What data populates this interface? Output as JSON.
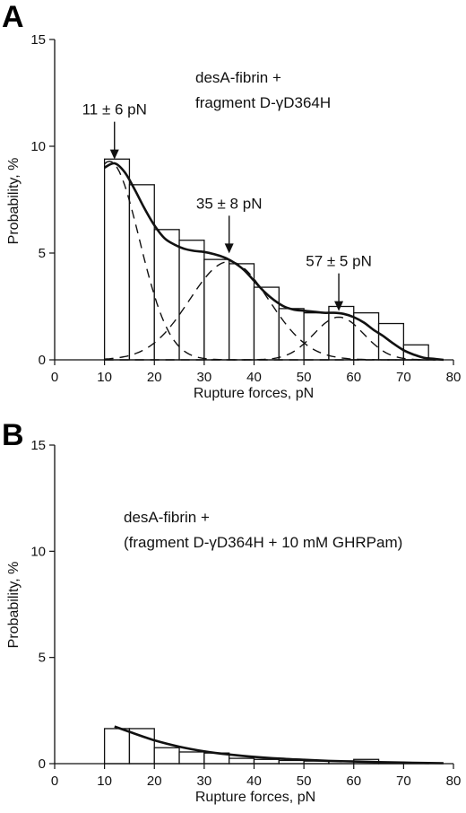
{
  "chart_data": [
    {
      "panel": "A",
      "type": "bar",
      "xlabel": "Rupture forces, pN",
      "ylabel": "Probability, %",
      "xlim": [
        0,
        80
      ],
      "ylim": [
        0,
        15
      ],
      "x_ticks": [
        0,
        10,
        20,
        30,
        40,
        50,
        60,
        70,
        80
      ],
      "y_ticks": [
        0,
        5,
        10,
        15
      ],
      "bin_width": 5,
      "bins": [
        10,
        15,
        20,
        25,
        30,
        35,
        40,
        45,
        50,
        55,
        60,
        65,
        70
      ],
      "values": [
        9.4,
        8.2,
        6.1,
        5.6,
        4.7,
        4.5,
        3.4,
        2.4,
        2.2,
        2.5,
        2.2,
        1.7,
        0.7
      ],
      "legend_text": [
        "desA-fibrin +",
        "fragment D-γD364H"
      ],
      "fit": {
        "x": [
          10,
          12,
          14,
          16,
          18,
          20,
          22,
          24,
          26,
          28,
          30,
          32,
          34,
          36,
          38,
          40,
          42,
          44,
          46,
          48,
          50,
          52,
          54,
          56,
          58,
          60,
          62,
          64,
          66,
          68,
          70,
          72,
          74,
          76,
          78
        ],
        "y": [
          9.0,
          9.2,
          8.8,
          8.0,
          7.1,
          6.3,
          5.7,
          5.4,
          5.2,
          5.1,
          5.05,
          4.95,
          4.8,
          4.55,
          4.2,
          3.7,
          3.2,
          2.8,
          2.5,
          2.35,
          2.3,
          2.25,
          2.2,
          2.2,
          2.15,
          2.0,
          1.75,
          1.4,
          1.1,
          0.75,
          0.45,
          0.25,
          0.1,
          0.05,
          0.0
        ]
      },
      "components": [
        {
          "mean": 11,
          "sd": 6,
          "amplitude": 9.3
        },
        {
          "mean": 35,
          "sd": 8,
          "amplitude": 4.6
        },
        {
          "mean": 57,
          "sd": 5,
          "amplitude": 2.0
        }
      ],
      "annotations": [
        {
          "text": "11 ± 6 pN",
          "x": 12,
          "arrow_to_y": 9.3
        },
        {
          "text": "35 ± 8 pN",
          "x": 35,
          "arrow_to_y": 4.9
        },
        {
          "text": "57 ± 5 pN",
          "x": 57,
          "arrow_to_y": 2.2
        }
      ]
    },
    {
      "panel": "B",
      "type": "bar",
      "xlabel": "Rupture forces, pN",
      "ylabel": "Probability, %",
      "xlim": [
        0,
        80
      ],
      "ylim": [
        0,
        15
      ],
      "x_ticks": [
        0,
        10,
        20,
        30,
        40,
        50,
        60,
        70,
        80
      ],
      "y_ticks": [
        0,
        5,
        10,
        15
      ],
      "bin_width": 5,
      "bins": [
        10,
        15,
        20,
        25,
        30,
        35,
        40,
        45,
        50,
        55,
        60,
        65,
        70
      ],
      "values": [
        1.65,
        1.65,
        0.75,
        0.55,
        0.5,
        0.25,
        0.2,
        0.15,
        0.12,
        0.12,
        0.2,
        0.05,
        0.05
      ],
      "legend_text": [
        "desA-fibrin +",
        "(fragment D-γD364H + 10 mM GHRPam)"
      ],
      "fit": {
        "x": [
          12,
          15,
          20,
          25,
          30,
          35,
          40,
          45,
          50,
          55,
          60,
          65,
          70,
          75,
          78
        ],
        "y": [
          1.75,
          1.5,
          1.1,
          0.8,
          0.58,
          0.43,
          0.32,
          0.24,
          0.18,
          0.13,
          0.1,
          0.07,
          0.05,
          0.03,
          0.02
        ]
      }
    }
  ]
}
